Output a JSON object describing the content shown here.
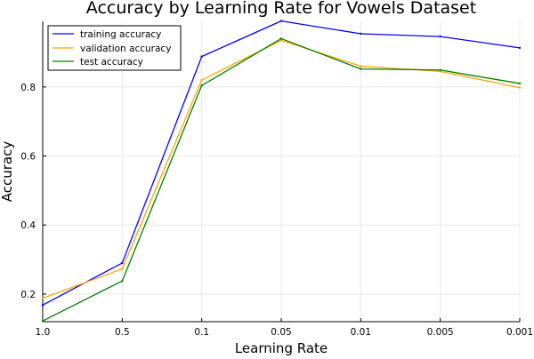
{
  "chart_data": {
    "type": "line",
    "title": "Accuracy by Learning Rate for Vowels Dataset",
    "xlabel": "Learning Rate",
    "ylabel": "Accuracy",
    "categories": [
      "1.0",
      "0.5",
      "0.1",
      "0.05",
      "0.01",
      "0.005",
      "0.001"
    ],
    "yticks": [
      0.2,
      0.4,
      0.6,
      0.8
    ],
    "ytick_labels": [
      "0.2",
      "0.4",
      "0.6",
      "0.8"
    ],
    "ylim": [
      0.12,
      0.99
    ],
    "grid": true,
    "legend_position": "top-left",
    "series": [
      {
        "name": "training accuracy",
        "color": "#0000ff",
        "values": [
          0.168,
          0.29,
          0.888,
          0.991,
          0.954,
          0.946,
          0.913
        ]
      },
      {
        "name": "validation accuracy",
        "color": "#ffa500",
        "values": [
          0.188,
          0.273,
          0.82,
          0.935,
          0.86,
          0.845,
          0.798
        ]
      },
      {
        "name": "test accuracy",
        "color": "#008000",
        "values": [
          0.122,
          0.238,
          0.804,
          0.94,
          0.852,
          0.849,
          0.81
        ]
      }
    ]
  }
}
